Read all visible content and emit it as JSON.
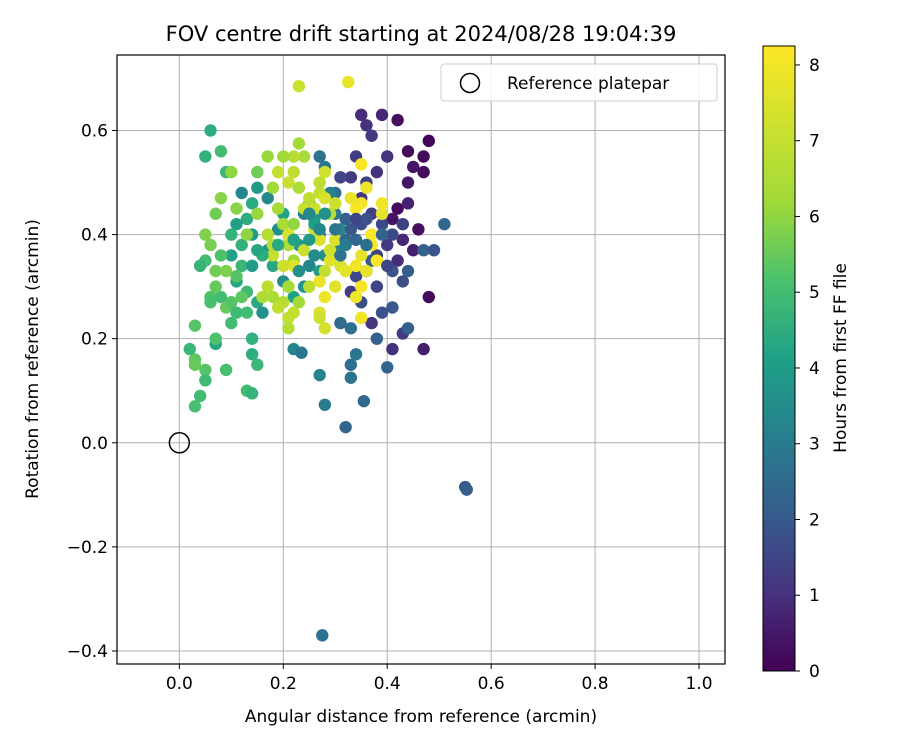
{
  "chart_data": {
    "type": "scatter",
    "title": "FOV centre drift starting at 2024/08/28 19:04:39",
    "xlabel": "Angular distance from reference (arcmin)",
    "ylabel": "Rotation from reference (arcmin)",
    "xlim": [
      -0.12,
      1.05
    ],
    "ylim": [
      -0.425,
      0.745
    ],
    "xticks": [
      0.0,
      0.2,
      0.4,
      0.6,
      0.8,
      1.0
    ],
    "yticks": [
      -0.4,
      -0.2,
      0.0,
      0.2,
      0.4,
      0.6
    ],
    "grid": true,
    "legend": {
      "placement": "top-right",
      "entries": [
        "Reference platepar"
      ]
    },
    "reference_point": {
      "x": 0.0,
      "y": 0.0
    },
    "colorbar": {
      "label": "Hours from first FF file",
      "min": 0,
      "max": 8.25,
      "ticks": [
        0,
        1,
        2,
        3,
        4,
        5,
        6,
        7,
        8
      ],
      "colormap": "viridis"
    },
    "points": [
      [
        0.48,
        0.58,
        0.1
      ],
      [
        0.47,
        0.55,
        0.2
      ],
      [
        0.42,
        0.62,
        0.3
      ],
      [
        0.44,
        0.56,
        0.2
      ],
      [
        0.45,
        0.53,
        0.4
      ],
      [
        0.47,
        0.52,
        0.3
      ],
      [
        0.48,
        0.28,
        0.2
      ],
      [
        0.46,
        0.41,
        0.3
      ],
      [
        0.42,
        0.45,
        0.2
      ],
      [
        0.44,
        0.5,
        0.5
      ],
      [
        0.45,
        0.37,
        0.6
      ],
      [
        0.43,
        0.39,
        0.8
      ],
      [
        0.41,
        0.43,
        0.4
      ],
      [
        0.44,
        0.46,
        0.7
      ],
      [
        0.42,
        0.35,
        0.9
      ],
      [
        0.39,
        0.63,
        0.8
      ],
      [
        0.36,
        0.61,
        1.0
      ],
      [
        0.35,
        0.63,
        0.9
      ],
      [
        0.37,
        0.59,
        1.2
      ],
      [
        0.4,
        0.55,
        1.1
      ],
      [
        0.34,
        0.55,
        1.3
      ],
      [
        0.38,
        0.52,
        1.0
      ],
      [
        0.36,
        0.5,
        1.4
      ],
      [
        0.33,
        0.51,
        1.2
      ],
      [
        0.31,
        0.51,
        1.5
      ],
      [
        0.35,
        0.47,
        1.1
      ],
      [
        0.37,
        0.44,
        1.3
      ],
      [
        0.39,
        0.42,
        1.6
      ],
      [
        0.4,
        0.38,
        1.2
      ],
      [
        0.38,
        0.36,
        1.4
      ],
      [
        0.36,
        0.33,
        1.0
      ],
      [
        0.34,
        0.32,
        1.6
      ],
      [
        0.33,
        0.29,
        1.3
      ],
      [
        0.35,
        0.27,
        1.7
      ],
      [
        0.38,
        0.3,
        1.5
      ],
      [
        0.39,
        0.25,
        1.8
      ],
      [
        0.37,
        0.23,
        1.1
      ],
      [
        0.41,
        0.33,
        1.9
      ],
      [
        0.43,
        0.31,
        1.7
      ],
      [
        0.41,
        0.26,
        2.0
      ],
      [
        0.44,
        0.33,
        2.1
      ],
      [
        0.43,
        0.21,
        1.3
      ],
      [
        0.41,
        0.18,
        1.0
      ],
      [
        0.47,
        0.18,
        0.6
      ],
      [
        0.44,
        0.22,
        2.2
      ],
      [
        0.47,
        0.37,
        2.2
      ],
      [
        0.51,
        0.42,
        2.4
      ],
      [
        0.49,
        0.37,
        1.9
      ],
      [
        0.55,
        -0.085,
        2.0
      ],
      [
        0.553,
        -0.09,
        2.1
      ],
      [
        0.32,
        0.03,
        2.4
      ],
      [
        0.355,
        0.08,
        2.5
      ],
      [
        0.275,
        -0.37,
        2.7
      ],
      [
        0.4,
        0.145,
        2.3
      ],
      [
        0.33,
        0.15,
        2.6
      ],
      [
        0.33,
        0.125,
        2.7
      ],
      [
        0.34,
        0.17,
        2.8
      ],
      [
        0.28,
        0.073,
        3.0
      ],
      [
        0.27,
        0.13,
        3.2
      ],
      [
        0.22,
        0.18,
        3.3
      ],
      [
        0.235,
        0.173,
        2.8
      ],
      [
        0.31,
        0.23,
        2.5
      ],
      [
        0.33,
        0.22,
        2.6
      ],
      [
        0.38,
        0.2,
        2.2
      ],
      [
        0.37,
        0.35,
        2.0
      ],
      [
        0.34,
        0.39,
        2.4
      ],
      [
        0.32,
        0.43,
        2.2
      ],
      [
        0.3,
        0.48,
        2.6
      ],
      [
        0.28,
        0.53,
        2.9
      ],
      [
        0.27,
        0.55,
        2.7
      ],
      [
        0.29,
        0.48,
        3.1
      ],
      [
        0.3,
        0.44,
        2.9
      ],
      [
        0.31,
        0.41,
        3.4
      ],
      [
        0.3,
        0.37,
        3.2
      ],
      [
        0.28,
        0.36,
        3.6
      ],
      [
        0.27,
        0.4,
        3.0
      ],
      [
        0.26,
        0.43,
        3.8
      ],
      [
        0.25,
        0.46,
        3.5
      ],
      [
        0.24,
        0.44,
        3.1
      ],
      [
        0.23,
        0.38,
        3.9
      ],
      [
        0.25,
        0.34,
        3.3
      ],
      [
        0.27,
        0.33,
        4.0
      ],
      [
        0.24,
        0.3,
        3.7
      ],
      [
        0.22,
        0.28,
        4.1
      ],
      [
        0.2,
        0.31,
        3.5
      ],
      [
        0.18,
        0.34,
        4.3
      ],
      [
        0.17,
        0.37,
        3.8
      ],
      [
        0.19,
        0.41,
        3.6
      ],
      [
        0.2,
        0.44,
        4.2
      ],
      [
        0.17,
        0.47,
        3.4
      ],
      [
        0.15,
        0.49,
        3.9
      ],
      [
        0.14,
        0.46,
        4.4
      ],
      [
        0.12,
        0.48,
        3.3
      ],
      [
        0.13,
        0.43,
        4.5
      ],
      [
        0.14,
        0.4,
        4.0
      ],
      [
        0.12,
        0.38,
        4.6
      ],
      [
        0.11,
        0.42,
        4.1
      ],
      [
        0.1,
        0.4,
        4.7
      ],
      [
        0.1,
        0.36,
        4.2
      ],
      [
        0.12,
        0.34,
        4.8
      ],
      [
        0.11,
        0.31,
        4.3
      ],
      [
        0.13,
        0.29,
        4.9
      ],
      [
        0.15,
        0.27,
        4.4
      ],
      [
        0.16,
        0.25,
        3.6
      ],
      [
        0.13,
        0.25,
        5.0
      ],
      [
        0.14,
        0.2,
        4.6
      ],
      [
        0.14,
        0.17,
        4.5
      ],
      [
        0.15,
        0.15,
        4.8
      ],
      [
        0.13,
        0.1,
        5.0
      ],
      [
        0.14,
        0.095,
        4.7
      ],
      [
        0.09,
        0.14,
        5.1
      ],
      [
        0.07,
        0.19,
        4.3
      ],
      [
        0.07,
        0.2,
        5.2
      ],
      [
        0.05,
        0.14,
        5.3
      ],
      [
        0.05,
        0.12,
        4.9
      ],
      [
        0.04,
        0.09,
        5.0
      ],
      [
        0.03,
        0.16,
        5.4
      ],
      [
        0.03,
        0.07,
        5.1
      ],
      [
        0.03,
        0.225,
        5.3
      ],
      [
        0.02,
        0.18,
        4.8
      ],
      [
        0.03,
        0.15,
        5.5
      ],
      [
        0.06,
        0.28,
        5.2
      ],
      [
        0.08,
        0.28,
        5.0
      ],
      [
        0.09,
        0.26,
        5.5
      ],
      [
        0.1,
        0.27,
        5.3
      ],
      [
        0.11,
        0.25,
        4.9
      ],
      [
        0.12,
        0.28,
        5.4
      ],
      [
        0.07,
        0.33,
        5.6
      ],
      [
        0.08,
        0.36,
        5.2
      ],
      [
        0.06,
        0.38,
        5.7
      ],
      [
        0.05,
        0.35,
        5.0
      ],
      [
        0.09,
        0.33,
        5.8
      ],
      [
        0.11,
        0.32,
        5.3
      ],
      [
        0.07,
        0.3,
        5.5
      ],
      [
        0.04,
        0.34,
        4.7
      ],
      [
        0.05,
        0.4,
        5.8
      ],
      [
        0.06,
        0.27,
        5.1
      ],
      [
        0.1,
        0.23,
        5.0
      ],
      [
        0.07,
        0.44,
        5.6
      ],
      [
        0.08,
        0.47,
        5.9
      ],
      [
        0.09,
        0.52,
        4.8
      ],
      [
        0.1,
        0.52,
        6.0
      ],
      [
        0.05,
        0.55,
        4.6
      ],
      [
        0.06,
        0.6,
        4.5
      ],
      [
        0.08,
        0.56,
        5.0
      ],
      [
        0.11,
        0.45,
        5.9
      ],
      [
        0.13,
        0.4,
        6.0
      ],
      [
        0.15,
        0.44,
        6.1
      ],
      [
        0.15,
        0.52,
        5.6
      ],
      [
        0.17,
        0.55,
        6.1
      ],
      [
        0.18,
        0.49,
        6.2
      ],
      [
        0.19,
        0.45,
        6.3
      ],
      [
        0.2,
        0.42,
        6.4
      ],
      [
        0.22,
        0.42,
        6.0
      ],
      [
        0.21,
        0.38,
        6.5
      ],
      [
        0.22,
        0.35,
        6.2
      ],
      [
        0.23,
        0.33,
        6.6
      ],
      [
        0.21,
        0.3,
        6.3
      ],
      [
        0.2,
        0.27,
        6.7
      ],
      [
        0.18,
        0.28,
        6.4
      ],
      [
        0.17,
        0.3,
        6.8
      ],
      [
        0.16,
        0.28,
        6.5
      ],
      [
        0.19,
        0.26,
        6.9
      ],
      [
        0.21,
        0.24,
        7.0
      ],
      [
        0.21,
        0.22,
        6.6
      ],
      [
        0.23,
        0.27,
        6.3
      ],
      [
        0.25,
        0.3,
        6.8
      ],
      [
        0.22,
        0.25,
        7.0
      ],
      [
        0.24,
        0.55,
        6.4
      ],
      [
        0.22,
        0.55,
        6.7
      ],
      [
        0.2,
        0.55,
        6.2
      ],
      [
        0.22,
        0.52,
        6.9
      ],
      [
        0.23,
        0.49,
        6.5
      ],
      [
        0.21,
        0.5,
        7.1
      ],
      [
        0.19,
        0.52,
        7.0
      ],
      [
        0.24,
        0.45,
        7.1
      ],
      [
        0.25,
        0.47,
        6.9
      ],
      [
        0.26,
        0.45,
        7.2
      ],
      [
        0.27,
        0.48,
        7.0
      ],
      [
        0.28,
        0.52,
        7.3
      ],
      [
        0.27,
        0.5,
        6.8
      ],
      [
        0.28,
        0.47,
        7.4
      ],
      [
        0.29,
        0.44,
        6.6
      ],
      [
        0.3,
        0.46,
        7.2
      ],
      [
        0.26,
        0.41,
        7.3
      ],
      [
        0.27,
        0.39,
        7.5
      ],
      [
        0.24,
        0.37,
        7.1
      ],
      [
        0.22,
        0.34,
        7.6
      ],
      [
        0.2,
        0.34,
        7.2
      ],
      [
        0.18,
        0.36,
        7.0
      ],
      [
        0.18,
        0.38,
        6.8
      ],
      [
        0.17,
        0.4,
        6.6
      ],
      [
        0.21,
        0.4,
        7.4
      ],
      [
        0.29,
        0.37,
        7.3
      ],
      [
        0.3,
        0.39,
        7.5
      ],
      [
        0.29,
        0.35,
        7.6
      ],
      [
        0.31,
        0.34,
        7.4
      ],
      [
        0.31,
        0.36,
        7.7
      ],
      [
        0.28,
        0.33,
        7.0
      ],
      [
        0.27,
        0.31,
        7.8
      ],
      [
        0.3,
        0.3,
        7.6
      ],
      [
        0.28,
        0.28,
        7.9
      ],
      [
        0.27,
        0.25,
        7.5
      ],
      [
        0.27,
        0.24,
        7.2
      ],
      [
        0.28,
        0.22,
        7.3
      ],
      [
        0.23,
        0.575,
        6.2
      ],
      [
        0.23,
        0.685,
        7.1
      ],
      [
        0.325,
        0.693,
        7.8
      ],
      [
        0.35,
        0.535,
        8.1
      ],
      [
        0.36,
        0.49,
        7.9
      ],
      [
        0.35,
        0.46,
        8.0
      ],
      [
        0.33,
        0.47,
        7.8
      ],
      [
        0.34,
        0.45,
        8.1
      ],
      [
        0.35,
        0.36,
        7.7
      ],
      [
        0.34,
        0.34,
        8.0
      ],
      [
        0.36,
        0.33,
        7.8
      ],
      [
        0.35,
        0.3,
        8.1
      ],
      [
        0.34,
        0.28,
        7.9
      ],
      [
        0.35,
        0.24,
        8.0
      ],
      [
        0.32,
        0.33,
        7.7
      ],
      [
        0.37,
        0.38,
        8.1
      ],
      [
        0.38,
        0.35,
        8.2
      ],
      [
        0.39,
        0.44,
        7.7
      ],
      [
        0.37,
        0.4,
        8.2
      ],
      [
        0.39,
        0.46,
        8.0
      ],
      [
        0.26,
        0.42,
        4.0
      ],
      [
        0.25,
        0.39,
        3.9
      ],
      [
        0.32,
        0.39,
        2.4
      ],
      [
        0.33,
        0.41,
        2.0
      ],
      [
        0.35,
        0.42,
        1.7
      ],
      [
        0.34,
        0.43,
        1.5
      ],
      [
        0.36,
        0.43,
        1.8
      ],
      [
        0.4,
        0.34,
        1.5
      ],
      [
        0.41,
        0.4,
        1.6
      ],
      [
        0.43,
        0.42,
        1.4
      ],
      [
        0.39,
        0.4,
        2.2
      ],
      [
        0.36,
        0.38,
        2.6
      ],
      [
        0.31,
        0.36,
        2.7
      ],
      [
        0.32,
        0.38,
        3.0
      ],
      [
        0.3,
        0.41,
        2.8
      ],
      [
        0.26,
        0.36,
        3.5
      ],
      [
        0.25,
        0.44,
        3.4
      ],
      [
        0.27,
        0.41,
        3.3
      ],
      [
        0.28,
        0.44,
        3.6
      ],
      [
        0.23,
        0.33,
        3.6
      ],
      [
        0.22,
        0.39,
        4.2
      ],
      [
        0.19,
        0.38,
        4.4
      ],
      [
        0.16,
        0.36,
        4.5
      ],
      [
        0.15,
        0.37,
        4.3
      ],
      [
        0.14,
        0.34,
        4.0
      ]
    ]
  }
}
